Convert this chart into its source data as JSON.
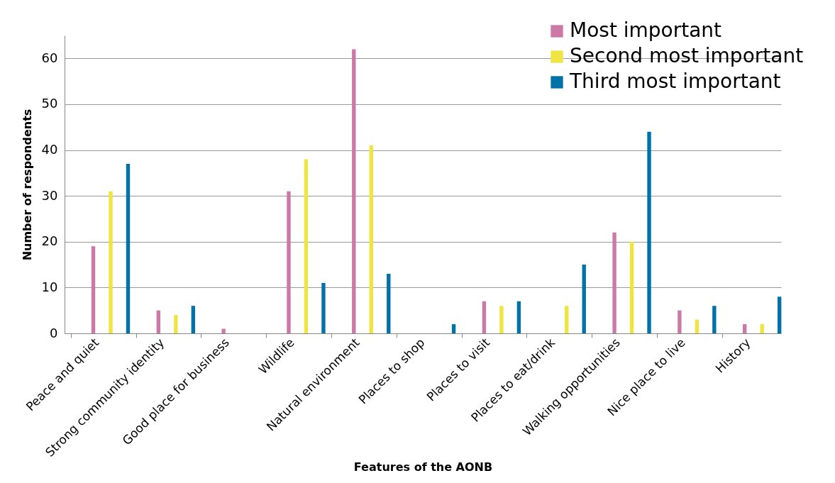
{
  "chart_data": {
    "type": "bar",
    "xlabel": "Features of the AONB",
    "ylabel": "Number of respondents",
    "categories": [
      "Peace and quiet",
      "Strong community identity",
      "Good place for business",
      "Wildlife",
      "Natural environment",
      "Places to shop",
      "Places to visit",
      "Places to eat/drink",
      "Walking opportunities",
      "Nice place to live",
      "History"
    ],
    "series": [
      {
        "name": "Most important",
        "color": "#cc79a7",
        "values": [
          19,
          5,
          1,
          31,
          62,
          0,
          7,
          0,
          22,
          5,
          2
        ]
      },
      {
        "name": "Second most important",
        "color": "#f0e442",
        "values": [
          31,
          4,
          0,
          38,
          41,
          0,
          6,
          6,
          20,
          3,
          2
        ]
      },
      {
        "name": "Third most important",
        "color": "#0072a8",
        "values": [
          37,
          6,
          0,
          11,
          13,
          2,
          7,
          15,
          44,
          6,
          8
        ]
      }
    ],
    "ylim": [
      0,
      65
    ],
    "yticks": [
      0,
      10,
      20,
      30,
      40,
      50,
      60
    ],
    "grid": "y",
    "legend": "top right"
  }
}
